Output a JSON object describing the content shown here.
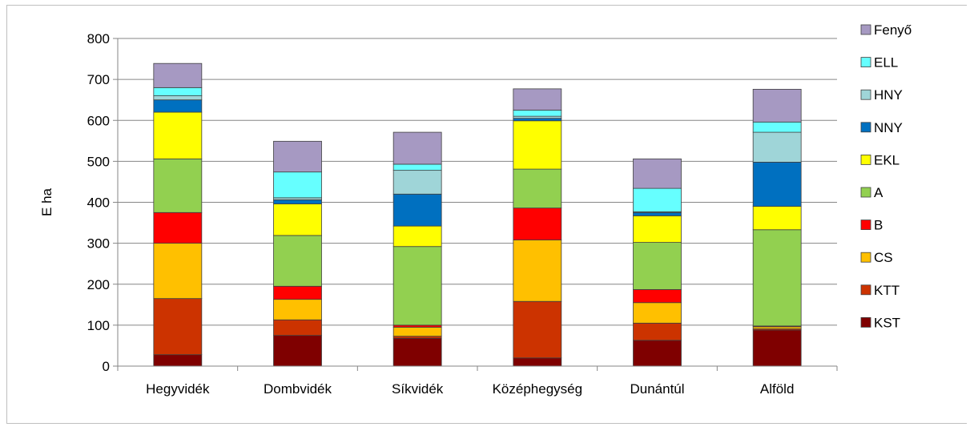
{
  "chart_data": {
    "type": "bar",
    "stacked": true,
    "title": "",
    "xlabel": "",
    "ylabel": "E ha",
    "ylim": [
      0,
      800
    ],
    "yticks": [
      0,
      100,
      200,
      300,
      400,
      500,
      600,
      700,
      800
    ],
    "grid": true,
    "legend_position": "right",
    "categories": [
      "Hegyvidék",
      "Dombvidék",
      "Síkvidék",
      "Középhegység",
      "Dunántúl",
      "Alföld"
    ],
    "series": [
      {
        "name": "KST",
        "color": "#7f0000",
        "values": [
          28,
          75,
          68,
          20,
          63,
          88
        ]
      },
      {
        "name": "KTT",
        "color": "#cc3300",
        "values": [
          137,
          38,
          5,
          138,
          42,
          3
        ]
      },
      {
        "name": "CS",
        "color": "#ffc000",
        "values": [
          135,
          50,
          22,
          150,
          50,
          5
        ]
      },
      {
        "name": "B",
        "color": "#ff0000",
        "values": [
          75,
          32,
          5,
          78,
          32,
          2
        ]
      },
      {
        "name": "A",
        "color": "#92d050",
        "values": [
          131,
          124,
          192,
          95,
          115,
          235
        ]
      },
      {
        "name": "EKL",
        "color": "#ffff00",
        "values": [
          114,
          77,
          50,
          118,
          65,
          57
        ]
      },
      {
        "name": "NNY",
        "color": "#0070c0",
        "values": [
          30,
          10,
          78,
          6,
          8,
          108
        ]
      },
      {
        "name": "HNY",
        "color": "#9fd5d8",
        "values": [
          10,
          5,
          58,
          5,
          2,
          73
        ]
      },
      {
        "name": "ELL",
        "color": "#66ffff",
        "values": [
          20,
          63,
          15,
          15,
          57,
          25
        ]
      },
      {
        "name": "Fenyő",
        "color": "#a699c2",
        "values": [
          59,
          75,
          78,
          52,
          72,
          80
        ]
      }
    ]
  }
}
